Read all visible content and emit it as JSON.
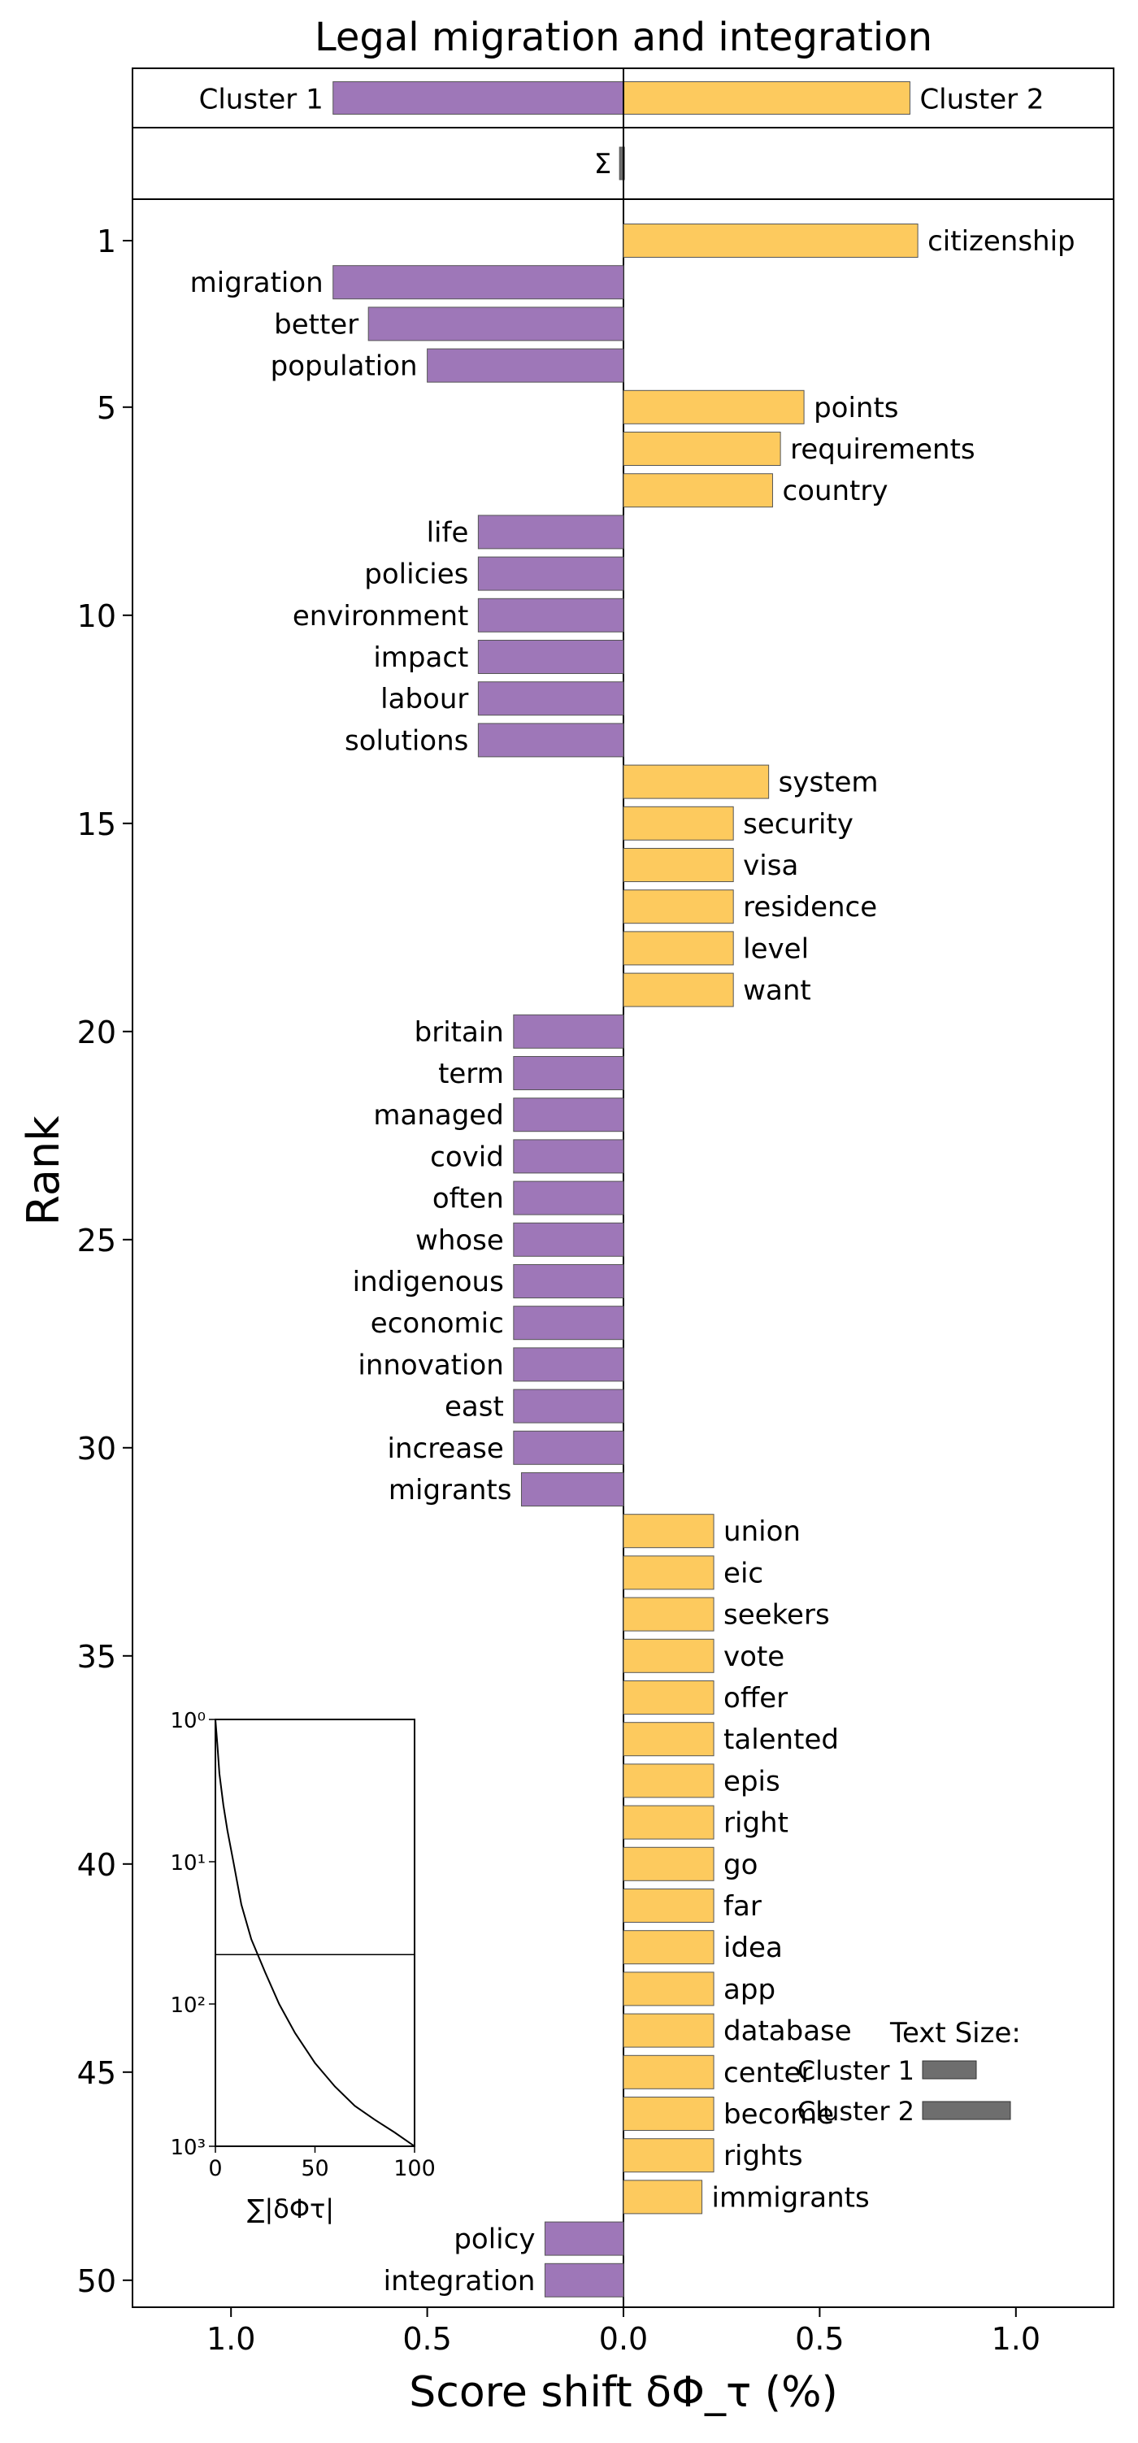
{
  "chart_data": {
    "type": "bar",
    "orientation": "horizontal",
    "title": "Legal migration and integration",
    "xlabel": "Score shift δΦ_τ (%)",
    "ylabel": "Rank",
    "xlim": [
      -1.25,
      1.25
    ],
    "x_ticks": [
      -1.0,
      -0.5,
      0.0,
      0.5,
      1.0
    ],
    "x_tick_labels": [
      "1.0",
      "0.5",
      "0.0",
      "0.5",
      "1.0"
    ],
    "y_ticks": [
      1,
      5,
      10,
      15,
      20,
      25,
      30,
      35,
      40,
      45,
      50
    ],
    "colors": {
      "cluster1": "#9e77b8",
      "cluster2": "#fdca5e",
      "edge": "#555555",
      "size_bar": "#6e6e6e"
    },
    "header": {
      "cluster1_label": "Cluster 1",
      "cluster2_label": "Cluster 2",
      "cluster1_value": -0.74,
      "cluster2_value": 0.73,
      "sum_symbol": "Σ",
      "sum_value": -0.01
    },
    "series": [
      {
        "rank": 1,
        "word": "citizenship",
        "value": 0.75
      },
      {
        "rank": 2,
        "word": "migration",
        "value": -0.74
      },
      {
        "rank": 3,
        "word": "better",
        "value": -0.65
      },
      {
        "rank": 4,
        "word": "population",
        "value": -0.5
      },
      {
        "rank": 5,
        "word": "points",
        "value": 0.46
      },
      {
        "rank": 6,
        "word": "requirements",
        "value": 0.4
      },
      {
        "rank": 7,
        "word": "country",
        "value": 0.38
      },
      {
        "rank": 8,
        "word": "life",
        "value": -0.37
      },
      {
        "rank": 9,
        "word": "policies",
        "value": -0.37
      },
      {
        "rank": 10,
        "word": "environment",
        "value": -0.37
      },
      {
        "rank": 11,
        "word": "impact",
        "value": -0.37
      },
      {
        "rank": 12,
        "word": "labour",
        "value": -0.37
      },
      {
        "rank": 13,
        "word": "solutions",
        "value": -0.37
      },
      {
        "rank": 14,
        "word": "system",
        "value": 0.37
      },
      {
        "rank": 15,
        "word": "security",
        "value": 0.28
      },
      {
        "rank": 16,
        "word": "visa",
        "value": 0.28
      },
      {
        "rank": 17,
        "word": "residence",
        "value": 0.28
      },
      {
        "rank": 18,
        "word": "level",
        "value": 0.28
      },
      {
        "rank": 19,
        "word": "want",
        "value": 0.28
      },
      {
        "rank": 20,
        "word": "britain",
        "value": -0.28
      },
      {
        "rank": 21,
        "word": "term",
        "value": -0.28
      },
      {
        "rank": 22,
        "word": "managed",
        "value": -0.28
      },
      {
        "rank": 23,
        "word": "covid",
        "value": -0.28
      },
      {
        "rank": 24,
        "word": "often",
        "value": -0.28
      },
      {
        "rank": 25,
        "word": "whose",
        "value": -0.28
      },
      {
        "rank": 26,
        "word": "indigenous",
        "value": -0.28
      },
      {
        "rank": 27,
        "word": "economic",
        "value": -0.28
      },
      {
        "rank": 28,
        "word": "innovation",
        "value": -0.28
      },
      {
        "rank": 29,
        "word": "east",
        "value": -0.28
      },
      {
        "rank": 30,
        "word": "increase",
        "value": -0.28
      },
      {
        "rank": 31,
        "word": "migrants",
        "value": -0.26
      },
      {
        "rank": 32,
        "word": "union",
        "value": 0.23
      },
      {
        "rank": 33,
        "word": "eic",
        "value": 0.23
      },
      {
        "rank": 34,
        "word": "seekers",
        "value": 0.23
      },
      {
        "rank": 35,
        "word": "vote",
        "value": 0.23
      },
      {
        "rank": 36,
        "word": "offer",
        "value": 0.23
      },
      {
        "rank": 37,
        "word": "talented",
        "value": 0.23
      },
      {
        "rank": 38,
        "word": "epis",
        "value": 0.23
      },
      {
        "rank": 39,
        "word": "right",
        "value": 0.23
      },
      {
        "rank": 40,
        "word": "go",
        "value": 0.23
      },
      {
        "rank": 41,
        "word": "far",
        "value": 0.23
      },
      {
        "rank": 42,
        "word": "idea",
        "value": 0.23
      },
      {
        "rank": 43,
        "word": "app",
        "value": 0.23
      },
      {
        "rank": 44,
        "word": "database",
        "value": 0.23
      },
      {
        "rank": 45,
        "word": "center",
        "value": 0.23
      },
      {
        "rank": 46,
        "word": "become",
        "value": 0.23
      },
      {
        "rank": 47,
        "word": "rights",
        "value": 0.23
      },
      {
        "rank": 48,
        "word": "immigrants",
        "value": 0.2
      },
      {
        "rank": 49,
        "word": "policy",
        "value": -0.2
      },
      {
        "rank": 50,
        "word": "integration",
        "value": -0.2
      }
    ],
    "inset": {
      "type": "line",
      "xlabel": "∑|δΦτ|",
      "x_ticks": [
        0,
        50,
        100
      ],
      "y_scale": "log",
      "y_ticks": [
        "10⁰",
        "10¹",
        "10²",
        "10³"
      ],
      "ylim": [
        1,
        1000
      ],
      "reference_line_y": 45,
      "curve": [
        [
          0,
          1
        ],
        [
          1,
          1.5
        ],
        [
          2,
          2.4
        ],
        [
          4,
          4
        ],
        [
          6,
          6
        ],
        [
          9,
          10
        ],
        [
          13,
          20
        ],
        [
          18,
          35
        ],
        [
          25,
          60
        ],
        [
          32,
          100
        ],
        [
          40,
          160
        ],
        [
          50,
          260
        ],
        [
          60,
          380
        ],
        [
          70,
          520
        ],
        [
          80,
          650
        ],
        [
          90,
          800
        ],
        [
          100,
          1000
        ]
      ]
    },
    "legend": {
      "title": "Text Size:",
      "entries": [
        {
          "label": "Cluster 1",
          "size": 0.55
        },
        {
          "label": "Cluster 2",
          "size": 0.9
        }
      ]
    }
  }
}
